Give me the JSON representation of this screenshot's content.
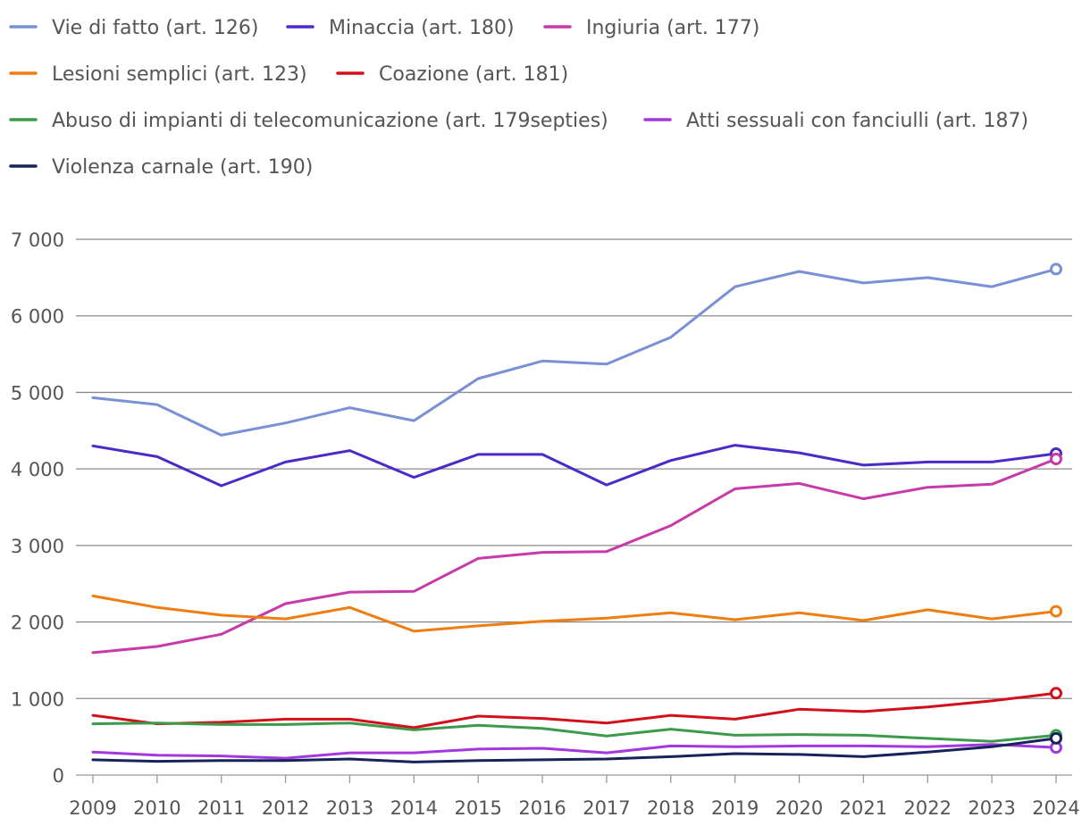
{
  "chart_data": {
    "type": "line",
    "title": "",
    "xlabel": "",
    "ylabel": "",
    "x": [
      2009,
      2010,
      2011,
      2012,
      2013,
      2014,
      2015,
      2016,
      2017,
      2018,
      2019,
      2020,
      2021,
      2022,
      2023,
      2024
    ],
    "ylim": [
      0,
      7000
    ],
    "yticks": [
      0,
      1000,
      2000,
      3000,
      4000,
      5000,
      6000,
      7000
    ],
    "ytick_labels": [
      "0",
      "1 000",
      "2 000",
      "3 000",
      "4 000",
      "5 000",
      "6 000",
      "7 000"
    ],
    "legend_position": "top",
    "series": [
      {
        "name": "Vie di fatto (art. 126)",
        "color": "#7a90d6",
        "values": [
          4930,
          4840,
          4440,
          4600,
          4800,
          4630,
          5180,
          5410,
          5370,
          5720,
          6380,
          6580,
          6430,
          6500,
          6380,
          6610
        ]
      },
      {
        "name": "Minaccia (art. 180)",
        "color": "#4b2bc8",
        "values": [
          4300,
          4160,
          3780,
          4090,
          4240,
          3890,
          4190,
          4190,
          3790,
          4110,
          4310,
          4210,
          4050,
          4090,
          4090,
          4200
        ]
      },
      {
        "name": "Ingiuria (art. 177)",
        "color": "#c83aa8",
        "values": [
          1600,
          1680,
          1840,
          2240,
          2390,
          2400,
          2830,
          2910,
          2920,
          3260,
          3740,
          3810,
          3610,
          3760,
          3800,
          4130
        ]
      },
      {
        "name": "Lesioni semplici (art. 123)",
        "color": "#ef7d10",
        "values": [
          2340,
          2190,
          2090,
          2040,
          2190,
          1880,
          1950,
          2010,
          2050,
          2120,
          2030,
          2120,
          2020,
          2160,
          2040,
          2140
        ]
      },
      {
        "name": "Coazione (art. 181)",
        "color": "#d2101c",
        "values": [
          780,
          670,
          690,
          730,
          730,
          620,
          770,
          740,
          680,
          780,
          730,
          860,
          830,
          890,
          970,
          1070
        ]
      },
      {
        "name": "Abuso di impianti di telecomunicazione (art. 179septies)",
        "color": "#3c9a4a",
        "values": [
          670,
          680,
          660,
          660,
          680,
          590,
          650,
          610,
          510,
          600,
          520,
          530,
          520,
          480,
          440,
          520
        ]
      },
      {
        "name": "Atti sessuali con fanciulli (art. 187)",
        "color": "#a438de",
        "values": [
          300,
          260,
          250,
          220,
          290,
          290,
          340,
          350,
          290,
          380,
          370,
          380,
          380,
          370,
          400,
          360
        ]
      },
      {
        "name": "Violenza carnale (art. 190)",
        "color": "#16235a",
        "values": [
          200,
          180,
          190,
          190,
          210,
          170,
          190,
          200,
          210,
          240,
          280,
          270,
          240,
          300,
          370,
          480
        ]
      }
    ]
  }
}
